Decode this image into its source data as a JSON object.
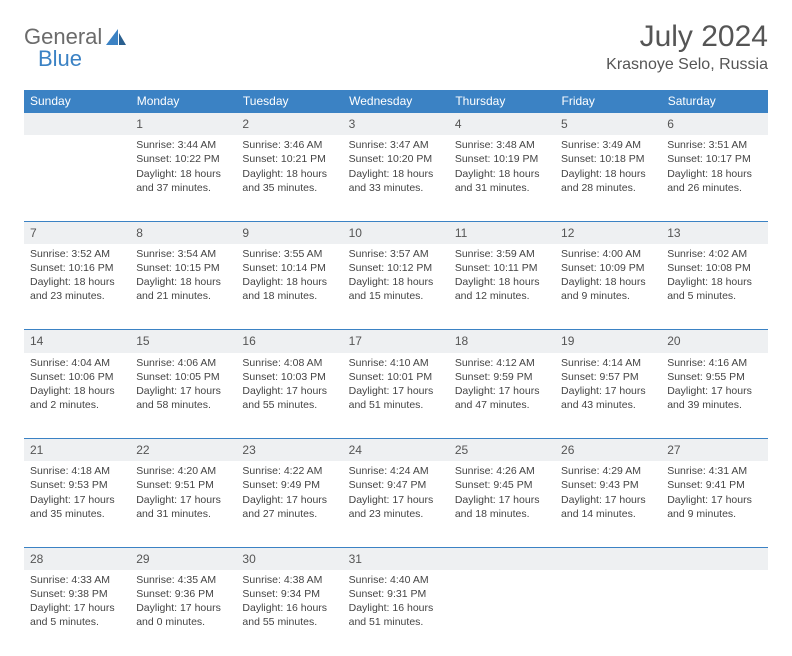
{
  "logo": {
    "word1": "General",
    "word2": "Blue"
  },
  "title": "July 2024",
  "location": "Krasnoye Selo, Russia",
  "colors": {
    "header_bg": "#3b82c4",
    "header_text": "#ffffff",
    "daynum_bg": "#eef0f2",
    "border": "#3b82c4",
    "body_text": "#444444",
    "title_text": "#555555"
  },
  "day_headers": [
    "Sunday",
    "Monday",
    "Tuesday",
    "Wednesday",
    "Thursday",
    "Friday",
    "Saturday"
  ],
  "weeks": [
    {
      "nums": [
        "",
        "1",
        "2",
        "3",
        "4",
        "5",
        "6"
      ],
      "cells": [
        null,
        {
          "sunrise": "Sunrise: 3:44 AM",
          "sunset": "Sunset: 10:22 PM",
          "daylight": "Daylight: 18 hours and 37 minutes."
        },
        {
          "sunrise": "Sunrise: 3:46 AM",
          "sunset": "Sunset: 10:21 PM",
          "daylight": "Daylight: 18 hours and 35 minutes."
        },
        {
          "sunrise": "Sunrise: 3:47 AM",
          "sunset": "Sunset: 10:20 PM",
          "daylight": "Daylight: 18 hours and 33 minutes."
        },
        {
          "sunrise": "Sunrise: 3:48 AM",
          "sunset": "Sunset: 10:19 PM",
          "daylight": "Daylight: 18 hours and 31 minutes."
        },
        {
          "sunrise": "Sunrise: 3:49 AM",
          "sunset": "Sunset: 10:18 PM",
          "daylight": "Daylight: 18 hours and 28 minutes."
        },
        {
          "sunrise": "Sunrise: 3:51 AM",
          "sunset": "Sunset: 10:17 PM",
          "daylight": "Daylight: 18 hours and 26 minutes."
        }
      ]
    },
    {
      "nums": [
        "7",
        "8",
        "9",
        "10",
        "11",
        "12",
        "13"
      ],
      "cells": [
        {
          "sunrise": "Sunrise: 3:52 AM",
          "sunset": "Sunset: 10:16 PM",
          "daylight": "Daylight: 18 hours and 23 minutes."
        },
        {
          "sunrise": "Sunrise: 3:54 AM",
          "sunset": "Sunset: 10:15 PM",
          "daylight": "Daylight: 18 hours and 21 minutes."
        },
        {
          "sunrise": "Sunrise: 3:55 AM",
          "sunset": "Sunset: 10:14 PM",
          "daylight": "Daylight: 18 hours and 18 minutes."
        },
        {
          "sunrise": "Sunrise: 3:57 AM",
          "sunset": "Sunset: 10:12 PM",
          "daylight": "Daylight: 18 hours and 15 minutes."
        },
        {
          "sunrise": "Sunrise: 3:59 AM",
          "sunset": "Sunset: 10:11 PM",
          "daylight": "Daylight: 18 hours and 12 minutes."
        },
        {
          "sunrise": "Sunrise: 4:00 AM",
          "sunset": "Sunset: 10:09 PM",
          "daylight": "Daylight: 18 hours and 9 minutes."
        },
        {
          "sunrise": "Sunrise: 4:02 AM",
          "sunset": "Sunset: 10:08 PM",
          "daylight": "Daylight: 18 hours and 5 minutes."
        }
      ]
    },
    {
      "nums": [
        "14",
        "15",
        "16",
        "17",
        "18",
        "19",
        "20"
      ],
      "cells": [
        {
          "sunrise": "Sunrise: 4:04 AM",
          "sunset": "Sunset: 10:06 PM",
          "daylight": "Daylight: 18 hours and 2 minutes."
        },
        {
          "sunrise": "Sunrise: 4:06 AM",
          "sunset": "Sunset: 10:05 PM",
          "daylight": "Daylight: 17 hours and 58 minutes."
        },
        {
          "sunrise": "Sunrise: 4:08 AM",
          "sunset": "Sunset: 10:03 PM",
          "daylight": "Daylight: 17 hours and 55 minutes."
        },
        {
          "sunrise": "Sunrise: 4:10 AM",
          "sunset": "Sunset: 10:01 PM",
          "daylight": "Daylight: 17 hours and 51 minutes."
        },
        {
          "sunrise": "Sunrise: 4:12 AM",
          "sunset": "Sunset: 9:59 PM",
          "daylight": "Daylight: 17 hours and 47 minutes."
        },
        {
          "sunrise": "Sunrise: 4:14 AM",
          "sunset": "Sunset: 9:57 PM",
          "daylight": "Daylight: 17 hours and 43 minutes."
        },
        {
          "sunrise": "Sunrise: 4:16 AM",
          "sunset": "Sunset: 9:55 PM",
          "daylight": "Daylight: 17 hours and 39 minutes."
        }
      ]
    },
    {
      "nums": [
        "21",
        "22",
        "23",
        "24",
        "25",
        "26",
        "27"
      ],
      "cells": [
        {
          "sunrise": "Sunrise: 4:18 AM",
          "sunset": "Sunset: 9:53 PM",
          "daylight": "Daylight: 17 hours and 35 minutes."
        },
        {
          "sunrise": "Sunrise: 4:20 AM",
          "sunset": "Sunset: 9:51 PM",
          "daylight": "Daylight: 17 hours and 31 minutes."
        },
        {
          "sunrise": "Sunrise: 4:22 AM",
          "sunset": "Sunset: 9:49 PM",
          "daylight": "Daylight: 17 hours and 27 minutes."
        },
        {
          "sunrise": "Sunrise: 4:24 AM",
          "sunset": "Sunset: 9:47 PM",
          "daylight": "Daylight: 17 hours and 23 minutes."
        },
        {
          "sunrise": "Sunrise: 4:26 AM",
          "sunset": "Sunset: 9:45 PM",
          "daylight": "Daylight: 17 hours and 18 minutes."
        },
        {
          "sunrise": "Sunrise: 4:29 AM",
          "sunset": "Sunset: 9:43 PM",
          "daylight": "Daylight: 17 hours and 14 minutes."
        },
        {
          "sunrise": "Sunrise: 4:31 AM",
          "sunset": "Sunset: 9:41 PM",
          "daylight": "Daylight: 17 hours and 9 minutes."
        }
      ]
    },
    {
      "nums": [
        "28",
        "29",
        "30",
        "31",
        "",
        "",
        ""
      ],
      "cells": [
        {
          "sunrise": "Sunrise: 4:33 AM",
          "sunset": "Sunset: 9:38 PM",
          "daylight": "Daylight: 17 hours and 5 minutes."
        },
        {
          "sunrise": "Sunrise: 4:35 AM",
          "sunset": "Sunset: 9:36 PM",
          "daylight": "Daylight: 17 hours and 0 minutes."
        },
        {
          "sunrise": "Sunrise: 4:38 AM",
          "sunset": "Sunset: 9:34 PM",
          "daylight": "Daylight: 16 hours and 55 minutes."
        },
        {
          "sunrise": "Sunrise: 4:40 AM",
          "sunset": "Sunset: 9:31 PM",
          "daylight": "Daylight: 16 hours and 51 minutes."
        },
        null,
        null,
        null
      ]
    }
  ]
}
